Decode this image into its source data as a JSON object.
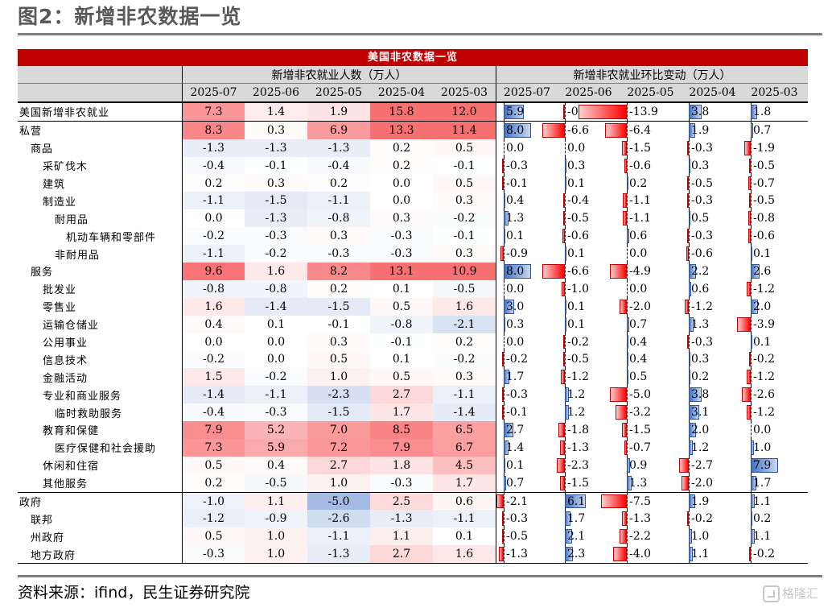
{
  "page": {
    "title": "图2：新增非农数据一览",
    "source": "资料来源：ifind，民生证券研究院",
    "watermark": "格隆汇"
  },
  "table": {
    "title": "美国非农数据一览",
    "left_header": "新增非农就业人数（万人）",
    "right_header": "新增非农就业环比变动（万人）",
    "months": [
      "2025-07",
      "2025-06",
      "2025-05",
      "2025-04",
      "2025-03"
    ],
    "heat_scale": {
      "neg_color": "#4472c4",
      "pos_color": "#f8696b",
      "max_abs": 15.8
    },
    "rows": [
      {
        "label": "美国新增非农就业",
        "level": 0,
        "group_start": true,
        "values": [
          "7.3",
          "1.4",
          "1.9",
          "15.8",
          "12.0"
        ],
        "changes": [
          "5.9",
          "-0.5",
          "-13.9",
          "3.8",
          "1.8"
        ]
      },
      {
        "label": "私营",
        "level": 0,
        "group_start": true,
        "values": [
          "8.3",
          "0.3",
          "6.9",
          "13.3",
          "11.4"
        ],
        "changes": [
          "8.0",
          "-6.6",
          "-6.4",
          "1.9",
          "0.7"
        ]
      },
      {
        "label": "商品",
        "level": 1,
        "values": [
          "-1.3",
          "-1.3",
          "-1.3",
          "0.2",
          "0.5"
        ],
        "changes": [
          "0.0",
          "0.0",
          "-1.5",
          "-0.3",
          "-1.9"
        ]
      },
      {
        "label": "采矿伐木",
        "level": 2,
        "values": [
          "-0.4",
          "-0.1",
          "-0.4",
          "0.2",
          "-0.1"
        ],
        "changes": [
          "-0.3",
          "0.3",
          "-0.6",
          "0.3",
          "-0.5"
        ]
      },
      {
        "label": "建筑",
        "level": 2,
        "values": [
          "0.2",
          "0.3",
          "0.2",
          "0.0",
          "0.5"
        ],
        "changes": [
          "-0.1",
          "0.1",
          "0.2",
          "-0.5",
          "-0.7"
        ]
      },
      {
        "label": "制造业",
        "level": 2,
        "values": [
          "-1.1",
          "-1.5",
          "-1.1",
          "0.0",
          "0.3"
        ],
        "changes": [
          "0.4",
          "-0.4",
          "-1.1",
          "-0.3",
          "-0.5"
        ]
      },
      {
        "label": "耐用品",
        "level": 3,
        "values": [
          "0.0",
          "-1.3",
          "-0.8",
          "0.3",
          "-0.2"
        ],
        "changes": [
          "1.3",
          "-0.5",
          "-1.1",
          "0.5",
          "-0.8"
        ]
      },
      {
        "label": "机动车辆和零部件",
        "level": 4,
        "values": [
          "-0.2",
          "-0.3",
          "0.3",
          "-0.3",
          "-0.1"
        ],
        "changes": [
          "0.1",
          "-0.6",
          "0.6",
          "-0.3",
          "-0.6"
        ]
      },
      {
        "label": "非耐用品",
        "level": 3,
        "values": [
          "-1.1",
          "-0.2",
          "-0.3",
          "-0.3",
          "0.3"
        ],
        "changes": [
          "-0.9",
          "0.1",
          "0.0",
          "-0.6",
          "0.1"
        ]
      },
      {
        "label": "服务",
        "level": 1,
        "values": [
          "9.6",
          "1.6",
          "8.2",
          "13.1",
          "10.9"
        ],
        "changes": [
          "8.0",
          "-6.6",
          "-4.9",
          "2.2",
          "2.6"
        ]
      },
      {
        "label": "批发业",
        "level": 2,
        "values": [
          "-0.8",
          "-0.8",
          "0.2",
          "0.1",
          "-0.5"
        ],
        "changes": [
          "0.0",
          "-1.0",
          "0.0",
          "0.6",
          "-1.2"
        ]
      },
      {
        "label": "零售业",
        "level": 2,
        "values": [
          "1.6",
          "-1.4",
          "-1.5",
          "0.5",
          "1.6"
        ],
        "changes": [
          "3.0",
          "0.1",
          "-2.0",
          "-1.2",
          "2.0"
        ]
      },
      {
        "label": "运输仓储业",
        "level": 2,
        "values": [
          "0.4",
          "0.1",
          "-0.1",
          "-0.8",
          "-2.1"
        ],
        "changes": [
          "0.3",
          "0.1",
          "0.7",
          "1.3",
          "-3.9"
        ]
      },
      {
        "label": "公用事业",
        "level": 2,
        "values": [
          "0.0",
          "0.0",
          "0.3",
          "-0.1",
          "0.2"
        ],
        "changes": [
          "0.0",
          "-0.2",
          "0.4",
          "-0.3",
          "0.1"
        ]
      },
      {
        "label": "信息技术",
        "level": 2,
        "values": [
          "-0.2",
          "0.0",
          "0.5",
          "0.1",
          "-0.2"
        ],
        "changes": [
          "-0.2",
          "-0.5",
          "0.4",
          "0.3",
          "-0.2"
        ]
      },
      {
        "label": "金融活动",
        "level": 2,
        "values": [
          "1.5",
          "-0.2",
          "1.0",
          "0.5",
          "0.3"
        ],
        "changes": [
          "1.7",
          "-1.2",
          "0.5",
          "0.2",
          "-1.2"
        ]
      },
      {
        "label": "专业和商业服务",
        "level": 2,
        "values": [
          "-1.4",
          "-1.1",
          "-2.3",
          "2.7",
          "-1.1"
        ],
        "changes": [
          "-0.3",
          "1.2",
          "-5.0",
          "3.8",
          "-2.6"
        ]
      },
      {
        "label": "临时救助服务",
        "level": 3,
        "values": [
          "-0.4",
          "-0.3",
          "-1.5",
          "1.7",
          "-1.4"
        ],
        "changes": [
          "-0.1",
          "1.2",
          "-3.2",
          "3.1",
          "-1.2"
        ]
      },
      {
        "label": "教育和保健",
        "level": 2,
        "values": [
          "7.9",
          "5.2",
          "7.0",
          "8.5",
          "6.5"
        ],
        "changes": [
          "2.7",
          "-1.8",
          "-1.5",
          "2.0",
          "0.0"
        ]
      },
      {
        "label": "医疗保健和社会援助",
        "level": 3,
        "values": [
          "7.3",
          "5.9",
          "7.2",
          "7.9",
          "6.7"
        ],
        "changes": [
          "1.4",
          "-1.3",
          "-0.7",
          "1.2",
          "1.0"
        ]
      },
      {
        "label": "休闲和住宿",
        "level": 2,
        "values": [
          "0.5",
          "0.4",
          "2.7",
          "1.8",
          "4.5"
        ],
        "changes": [
          "0.1",
          "-2.3",
          "0.9",
          "-2.7",
          "7.9"
        ]
      },
      {
        "label": "其他服务",
        "level": 2,
        "values": [
          "0.2",
          "-0.5",
          "1.0",
          "-0.3",
          "1.7"
        ],
        "changes": [
          "0.7",
          "-1.5",
          "1.3",
          "-2.0",
          "1.7"
        ]
      },
      {
        "label": "政府",
        "level": 0,
        "group_start": true,
        "values": [
          "-1.0",
          "1.1",
          "-5.0",
          "2.5",
          "0.6"
        ],
        "changes": [
          "-2.1",
          "6.1",
          "-7.5",
          "1.9",
          "1.1"
        ]
      },
      {
        "label": "联邦",
        "level": 1,
        "values": [
          "-1.2",
          "-0.9",
          "-2.6",
          "-1.3",
          "-1.1"
        ],
        "changes": [
          "-0.3",
          "1.7",
          "-1.3",
          "-0.2",
          "0.2"
        ]
      },
      {
        "label": "州政府",
        "level": 1,
        "values": [
          "0.5",
          "1.0",
          "-1.1",
          "1.1",
          "0.1"
        ],
        "changes": [
          "-0.5",
          "2.1",
          "-2.2",
          "1.0",
          "1.1"
        ]
      },
      {
        "label": "地方政府",
        "level": 1,
        "last": true,
        "values": [
          "-0.3",
          "1.0",
          "-1.3",
          "2.7",
          "1.6"
        ],
        "changes": [
          "-1.3",
          "2.3",
          "-4.0",
          "1.1",
          "-0.2"
        ]
      }
    ]
  }
}
